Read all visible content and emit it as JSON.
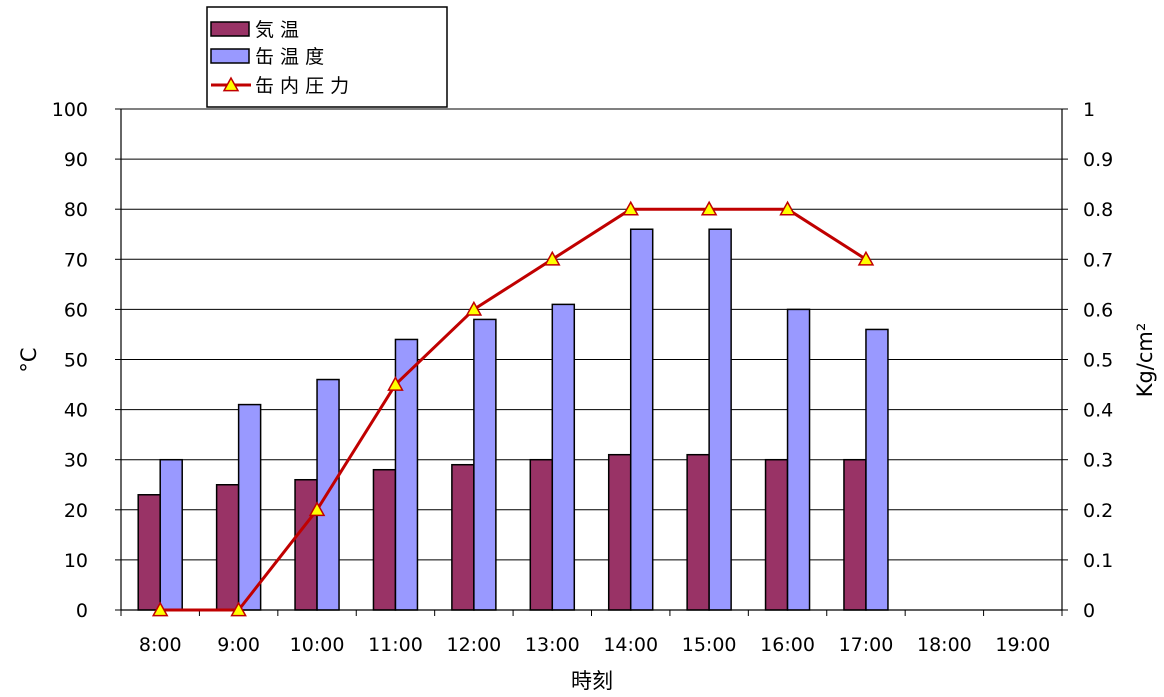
{
  "chart_data": {
    "type": "bar",
    "title": "",
    "categories": [
      "8:00",
      "9:00",
      "10:00",
      "11:00",
      "12:00",
      "13:00",
      "14:00",
      "15:00",
      "16:00",
      "17:00",
      "18:00",
      "19:00"
    ],
    "xlabel": "時刻",
    "ylabel_left": "°C",
    "ylabel_right": "Kg/cm²",
    "ylim_left": [
      0,
      100
    ],
    "ylim_right": [
      0,
      1
    ],
    "yticks_left": [
      "0",
      "10",
      "20",
      "30",
      "40",
      "50",
      "60",
      "70",
      "80",
      "90",
      "100"
    ],
    "yticks_right": [
      "0",
      "0.1",
      "0.2",
      "0.3",
      "0.4",
      "0.5",
      "0.6",
      "0.7",
      "0.8",
      "0.9",
      "1"
    ],
    "grid": true,
    "legend_position": "top-left, above plot",
    "series": [
      {
        "name": "気 温",
        "type": "bar",
        "axis": "left",
        "color": "#993366",
        "values": [
          23,
          25,
          26,
          28,
          29,
          30,
          31,
          31,
          30,
          30,
          null,
          null
        ]
      },
      {
        "name": "缶 温 度",
        "type": "bar",
        "axis": "left",
        "color": "#9999FF",
        "values": [
          30,
          41,
          46,
          54,
          58,
          61,
          76,
          76,
          60,
          56,
          null,
          null
        ]
      },
      {
        "name": "缶 内 圧 力",
        "type": "line",
        "axis": "right",
        "color": "#C00000",
        "marker": "triangle",
        "marker_fill": "#FFFF00",
        "values": [
          0,
          0,
          0.2,
          0.45,
          0.6,
          0.7,
          0.8,
          0.8,
          0.8,
          0.7,
          null,
          null
        ]
      }
    ]
  }
}
